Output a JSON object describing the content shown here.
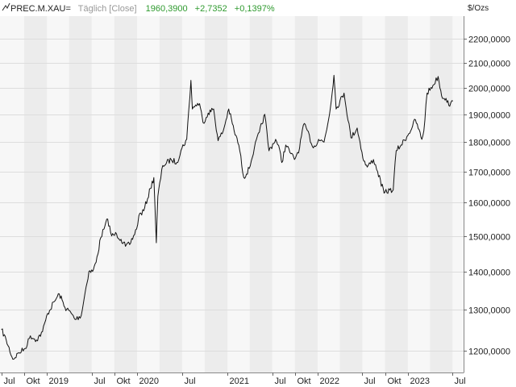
{
  "header": {
    "symbol": "PREC.M.XAU",
    "symbol_suffix": "=",
    "period": "Täglich [Close]",
    "last": "1960,3900",
    "change_abs": "+2,7352",
    "change_pct": "+0,1397%",
    "change_color": "#2e9a2e",
    "muted_color": "#999999",
    "symbol_color": "#222222"
  },
  "icons": {
    "chart_type": "line-chart-icon"
  },
  "chart_data": {
    "type": "line",
    "title": "",
    "xlabel": "",
    "ylabel": "$/Ozs",
    "scale": "log",
    "ylim": [
      1150,
      2300
    ],
    "xlim": [
      "2018-06-25",
      "2023-08-15"
    ],
    "y_ticks": [
      1200,
      1300,
      1400,
      1500,
      1600,
      1700,
      1800,
      1900,
      2000,
      2100,
      2200
    ],
    "y_tick_labels": [
      "1200,0000",
      "1300,0000",
      "1400,0000",
      "1500,0000",
      "1600,0000",
      "1700,0000",
      "1800,0000",
      "1900,0000",
      "2000,0000",
      "2100,0000",
      "2200,0000"
    ],
    "x_ticks": [
      {
        "date": "2018-07-01",
        "label": "Jul"
      },
      {
        "date": "2018-10-01",
        "label": "Okt"
      },
      {
        "date": "2019-01-01",
        "label": "2019"
      },
      {
        "date": "2019-07-01",
        "label": "Jul"
      },
      {
        "date": "2019-10-01",
        "label": "Okt"
      },
      {
        "date": "2020-01-01",
        "label": "2020"
      },
      {
        "date": "2020-07-01",
        "label": "Jul"
      },
      {
        "date": "2021-01-01",
        "label": "2021"
      },
      {
        "date": "2021-07-01",
        "label": "Jul"
      },
      {
        "date": "2021-10-01",
        "label": "Okt"
      },
      {
        "date": "2022-01-01",
        "label": "2022"
      },
      {
        "date": "2022-07-01",
        "label": "Jul"
      },
      {
        "date": "2022-10-01",
        "label": "Okt"
      },
      {
        "date": "2023-01-01",
        "label": "2023"
      },
      {
        "date": "2023-07-01",
        "label": "Jul"
      }
    ],
    "grid": true,
    "line_color": "#111111",
    "band_color": "#ececec",
    "plot_bg": "#f7f7f7",
    "grid_color": "#dddddd",
    "series": [
      {
        "x": [
          "2018-07-01",
          "2018-07-20",
          "2018-08-16",
          "2018-09-10",
          "2018-10-05",
          "2018-10-26",
          "2018-11-20",
          "2018-12-14",
          "2019-01-04",
          "2019-01-31",
          "2019-02-20",
          "2019-03-15",
          "2019-04-10",
          "2019-04-25",
          "2019-05-20",
          "2019-06-05",
          "2019-06-20",
          "2019-07-05",
          "2019-07-19",
          "2019-08-07",
          "2019-08-20",
          "2019-09-04",
          "2019-09-20",
          "2019-10-10",
          "2019-10-28",
          "2019-11-15",
          "2019-12-02",
          "2019-12-30",
          "2020-01-08",
          "2020-01-28",
          "2020-02-24",
          "2020-03-09",
          "2020-03-19",
          "2020-03-25",
          "2020-04-14",
          "2020-05-18",
          "2020-06-10",
          "2020-07-01",
          "2020-07-20",
          "2020-08-06",
          "2020-08-12",
          "2020-08-25",
          "2020-09-10",
          "2020-09-24",
          "2020-10-15",
          "2020-11-06",
          "2020-11-24",
          "2020-12-15",
          "2021-01-06",
          "2021-01-28",
          "2021-02-16",
          "2021-03-08",
          "2021-03-30",
          "2021-04-20",
          "2021-05-10",
          "2021-06-01",
          "2021-06-18",
          "2021-07-15",
          "2021-08-04",
          "2021-08-09",
          "2021-08-25",
          "2021-09-15",
          "2021-09-29",
          "2021-10-20",
          "2021-11-04",
          "2021-11-16",
          "2021-12-15",
          "2022-01-05",
          "2022-01-27",
          "2022-02-18",
          "2022-03-08",
          "2022-03-17",
          "2022-04-18",
          "2022-05-16",
          "2022-06-10",
          "2022-07-07",
          "2022-07-21",
          "2022-08-15",
          "2022-09-01",
          "2022-09-27",
          "2022-10-20",
          "2022-11-03",
          "2022-11-15",
          "2022-12-05",
          "2023-01-05",
          "2023-02-01",
          "2023-02-27",
          "2023-03-07",
          "2023-03-20",
          "2023-04-13",
          "2023-05-04",
          "2023-05-18",
          "2023-06-05",
          "2023-06-20",
          "2023-07-03"
        ],
        "y": [
          1250,
          1225,
          1180,
          1195,
          1205,
          1235,
          1225,
          1245,
          1290,
          1320,
          1340,
          1305,
          1290,
          1275,
          1285,
          1345,
          1400,
          1400,
          1425,
          1495,
          1520,
          1550,
          1500,
          1505,
          1490,
          1470,
          1475,
          1520,
          1560,
          1575,
          1645,
          1680,
          1480,
          1620,
          1720,
          1740,
          1730,
          1780,
          1810,
          2030,
          1920,
          1935,
          1940,
          1870,
          1905,
          1920,
          1805,
          1840,
          1920,
          1840,
          1790,
          1680,
          1710,
          1780,
          1835,
          1900,
          1770,
          1810,
          1760,
          1730,
          1790,
          1760,
          1740,
          1780,
          1860,
          1850,
          1780,
          1810,
          1800,
          1900,
          2050,
          1920,
          1980,
          1815,
          1850,
          1735,
          1715,
          1740,
          1700,
          1630,
          1640,
          1640,
          1770,
          1790,
          1830,
          1880,
          1810,
          1840,
          1980,
          2010,
          2045,
          1970,
          1960,
          1930,
          1950
        ]
      }
    ]
  }
}
